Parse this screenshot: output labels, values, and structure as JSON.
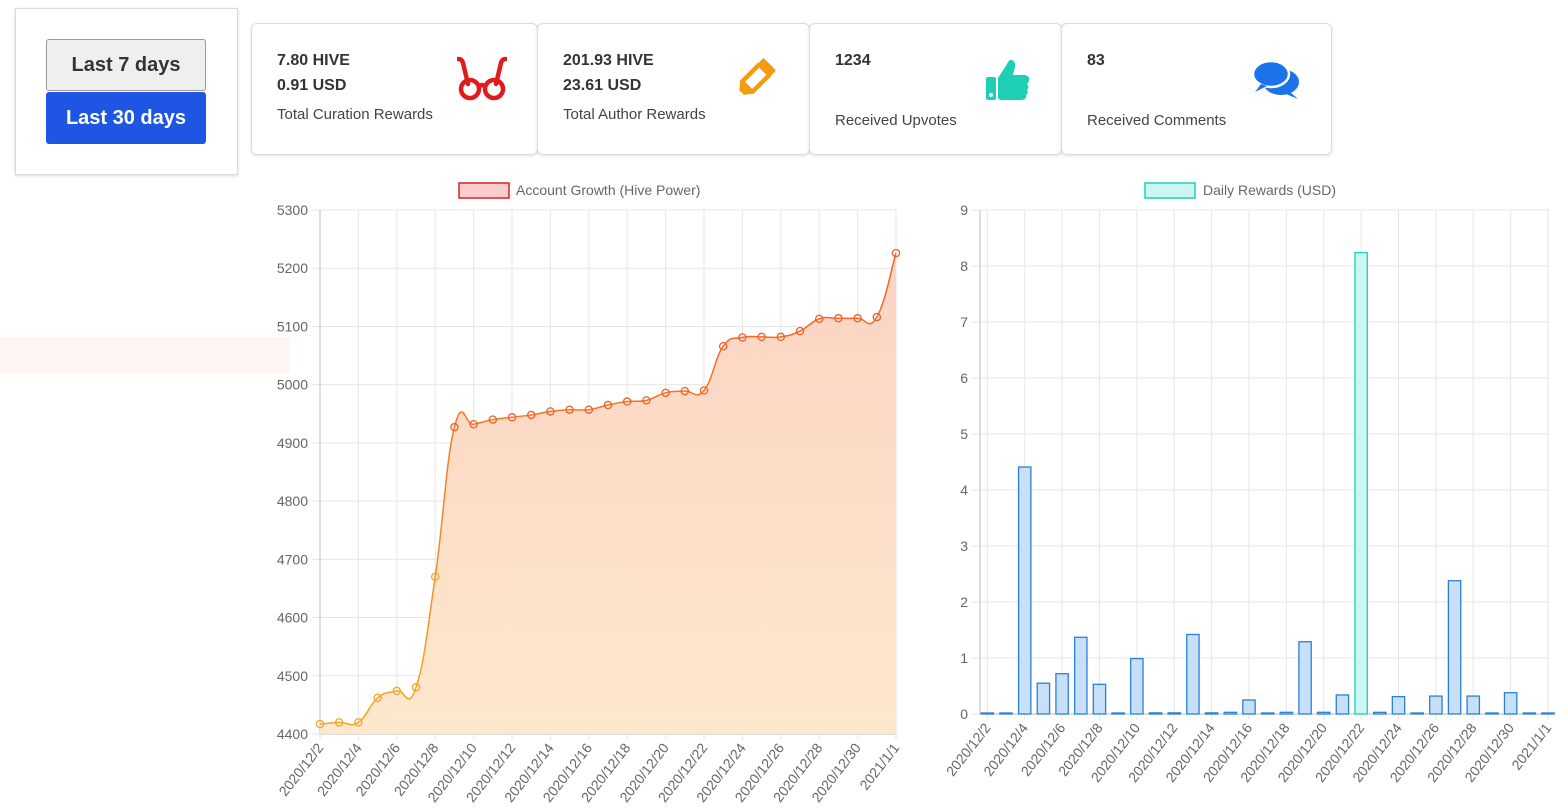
{
  "controls": {
    "btn_7": "Last 7 days",
    "btn_30": "Last 30 days"
  },
  "cards": [
    {
      "line1": "7.80 HIVE",
      "line2": "0.91 USD",
      "caption": "Total Curation Rewards",
      "icon": "glasses-icon",
      "color": "#e01b1b"
    },
    {
      "line1": "201.93 HIVE",
      "line2": "23.61 USD",
      "caption": "Total Author Rewards",
      "icon": "pencil-icon",
      "color": "#f39c12"
    },
    {
      "line1": "1234",
      "line2": "",
      "caption": "Received Upvotes",
      "icon": "thumbs-up-icon",
      "color": "#1ecfb6"
    },
    {
      "line1": "83",
      "line2": "",
      "caption": "Received Comments",
      "icon": "comments-icon",
      "color": "#1a73e8"
    }
  ],
  "chart_data": [
    {
      "type": "line",
      "legend": "Account Growth (Hive Power)",
      "x": [
        "2020/12/2",
        "2020/12/3",
        "2020/12/4",
        "2020/12/5",
        "2020/12/6",
        "2020/12/7",
        "2020/12/8",
        "2020/12/9",
        "2020/12/10",
        "2020/12/11",
        "2020/12/12",
        "2020/12/13",
        "2020/12/14",
        "2020/12/15",
        "2020/12/16",
        "2020/12/17",
        "2020/12/18",
        "2020/12/19",
        "2020/12/20",
        "2020/12/21",
        "2020/12/22",
        "2020/12/23",
        "2020/12/24",
        "2020/12/25",
        "2020/12/26",
        "2020/12/27",
        "2020/12/28",
        "2020/12/29",
        "2020/12/30",
        "2020/12/31",
        "2021/1/1"
      ],
      "x_tick_labels": [
        "2020/12/2",
        "2020/12/4",
        "2020/12/6",
        "2020/12/8",
        "2020/12/10",
        "2020/12/12",
        "2020/12/14",
        "2020/12/16",
        "2020/12/18",
        "2020/12/20",
        "2020/12/22",
        "2020/12/24",
        "2020/12/26",
        "2020/12/28",
        "2020/12/30",
        "2021/1/1"
      ],
      "values": [
        4417,
        4420,
        4420,
        4462,
        4474,
        4480,
        4670,
        4927,
        4932,
        4940,
        4944,
        4948,
        4954,
        4957,
        4957,
        4965,
        4971,
        4973,
        4986,
        4989,
        4990,
        5066,
        5081,
        5082,
        5082,
        5092,
        5113,
        5114,
        5114,
        5116,
        5226
      ],
      "ylim": [
        4400,
        5300
      ],
      "yticks": [
        4400,
        4500,
        4600,
        4700,
        4800,
        4900,
        5000,
        5100,
        5200,
        5300
      ],
      "grid": true,
      "legend_position": "top"
    },
    {
      "type": "bar",
      "legend": "Daily Rewards (USD)",
      "x": [
        "2020/12/2",
        "2020/12/3",
        "2020/12/4",
        "2020/12/5",
        "2020/12/6",
        "2020/12/7",
        "2020/12/8",
        "2020/12/9",
        "2020/12/10",
        "2020/12/11",
        "2020/12/12",
        "2020/12/13",
        "2020/12/14",
        "2020/12/15",
        "2020/12/16",
        "2020/12/17",
        "2020/12/18",
        "2020/12/19",
        "2020/12/20",
        "2020/12/21",
        "2020/12/22",
        "2020/12/23",
        "2020/12/24",
        "2020/12/25",
        "2020/12/26",
        "2020/12/27",
        "2020/12/28",
        "2020/12/29",
        "2020/12/30",
        "2020/12/31",
        "2021/1/1"
      ],
      "x_tick_labels": [
        "2020/12/2",
        "2020/12/4",
        "2020/12/6",
        "2020/12/8",
        "2020/12/10",
        "2020/12/12",
        "2020/12/14",
        "2020/12/16",
        "2020/12/18",
        "2020/12/20",
        "2020/12/22",
        "2020/12/24",
        "2020/12/26",
        "2020/12/28",
        "2020/12/30",
        "2021/1/1"
      ],
      "values": [
        0.01,
        0.01,
        4.41,
        0.55,
        0.72,
        1.37,
        0.53,
        0,
        0.99,
        0.02,
        0.02,
        1.42,
        0.02,
        0.03,
        0.25,
        0,
        0.03,
        1.29,
        0.03,
        0.34,
        8.24,
        0.03,
        0.31,
        0.01,
        0.32,
        2.38,
        0.32,
        0,
        0.38,
        0,
        0
      ],
      "highlight_index": 20,
      "ylim": [
        0,
        9
      ],
      "yticks": [
        0,
        1,
        2,
        3,
        4,
        5,
        6,
        7,
        8,
        9
      ],
      "grid": true,
      "legend_position": "top"
    }
  ],
  "colors": {
    "line_stroke_top": "#f0602a",
    "line_stroke_bottom": "#f5a623",
    "area_fill_top": "#fcd3c3",
    "area_fill_bottom": "#fde8cc",
    "bar_fill": "#c8e0f7",
    "bar_stroke": "#2c7fd6",
    "bar_highlight_fill": "#cbf6f1",
    "bar_highlight_stroke": "#1ecfb6",
    "legend1_fill": "#f9cdcd",
    "legend1_stroke": "#e02020",
    "legend2_fill": "#cbf6f1",
    "legend2_stroke": "#1ecfb6",
    "grid": "#e6e6e6",
    "axis": "#666666"
  }
}
